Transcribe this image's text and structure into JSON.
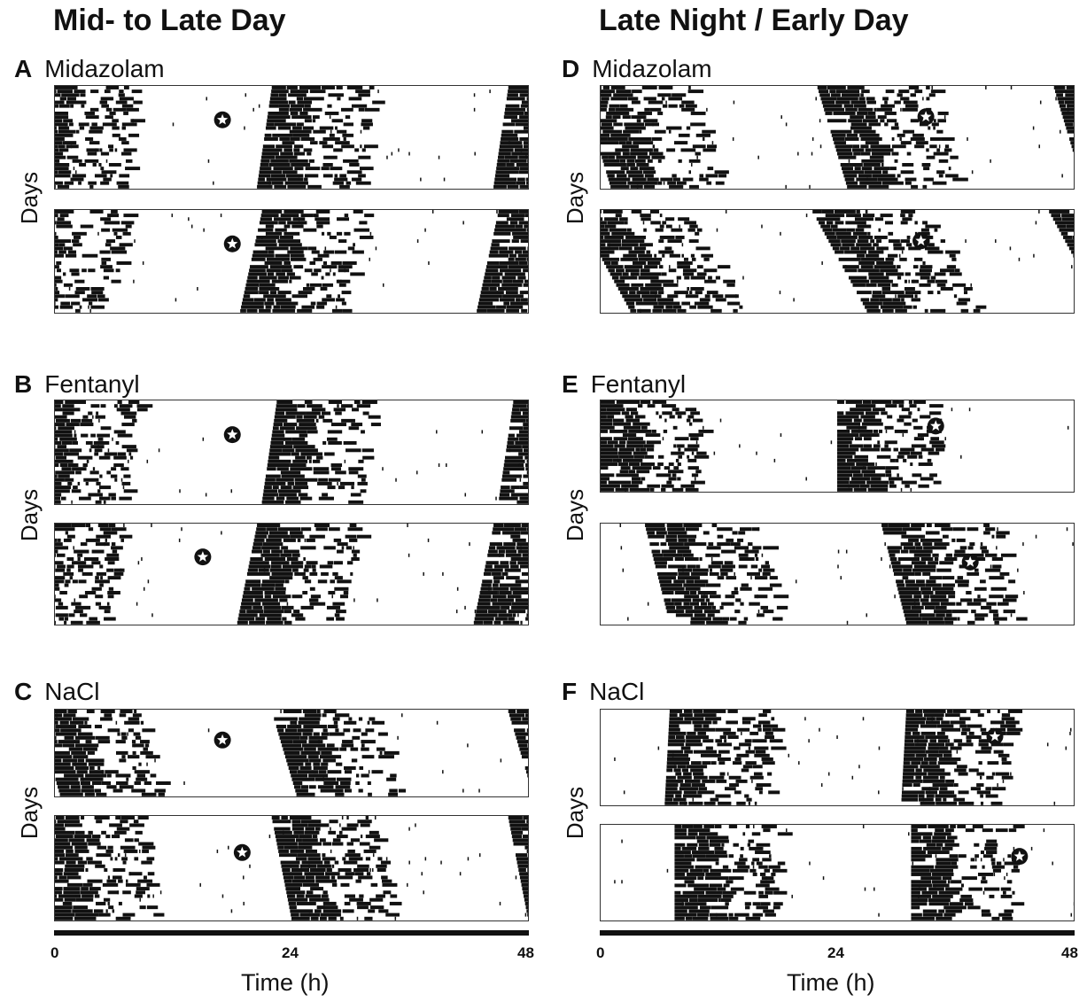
{
  "columns": [
    {
      "title": "Mid- to Late Day",
      "x_ticks": [
        "0",
        "24",
        "48"
      ],
      "x_label": "Time (h)"
    },
    {
      "title": "Late Night / Early Day",
      "x_ticks": [
        "0",
        "24",
        "48"
      ],
      "x_label": "Time (h)"
    }
  ],
  "panels": [
    {
      "letter": "A",
      "drug": "Midazolam",
      "y_label": "Days"
    },
    {
      "letter": "B",
      "drug": "Fentanyl",
      "y_label": "Days"
    },
    {
      "letter": "C",
      "drug": "NaCl",
      "y_label": "Days"
    },
    {
      "letter": "D",
      "drug": "Midazolam",
      "y_label": "Days"
    },
    {
      "letter": "E",
      "drug": "Fentanyl",
      "y_label": "Days"
    },
    {
      "letter": "F",
      "drug": "NaCl",
      "y_label": "Days"
    }
  ],
  "chart_data": {
    "type": "actogram",
    "x_unit": "Time (h)",
    "xlim": [
      0,
      48
    ],
    "x_ticks": [
      0,
      24,
      48
    ],
    "ylabel": "Days",
    "colors": {
      "activity": "#111111",
      "background": "#ffffff"
    },
    "plots": [
      {
        "panel": "A",
        "animal": 1,
        "onsets": [
          22,
          20.5
        ],
        "band_width": 10.5,
        "injection": {
          "time": 17,
          "day_fraction": 0.33
        }
      },
      {
        "panel": "A",
        "animal": 2,
        "onsets": [
          21,
          18.8
        ],
        "band_width": 10.5,
        "injection": {
          "time": 18,
          "day_fraction": 0.33
        }
      },
      {
        "panel": "B",
        "animal": 1,
        "onsets": [
          22.5,
          21
        ],
        "band_width": 10,
        "injection": {
          "time": 18,
          "day_fraction": 0.33
        }
      },
      {
        "panel": "B",
        "animal": 2,
        "onsets": [
          20.5,
          18.5
        ],
        "band_width": 10.5,
        "injection": {
          "time": 15,
          "day_fraction": 0.33
        }
      },
      {
        "panel": "C",
        "animal": 1,
        "onsets": [
          22,
          24.5
        ],
        "band_width": 10.5,
        "injection": {
          "time": 17,
          "day_fraction": 0.35
        }
      },
      {
        "panel": "C",
        "animal": 2,
        "onsets": [
          22,
          24
        ],
        "band_width": 10.5,
        "injection": {
          "time": 19,
          "day_fraction": 0.35
        }
      },
      {
        "panel": "D",
        "animal": 1,
        "onsets": [
          22,
          25
        ],
        "band_width": 11.5,
        "injection": {
          "time": 33,
          "day_fraction": 0.3
        }
      },
      {
        "panel": "D",
        "animal": 2,
        "onsets": [
          21.5,
          27
        ],
        "band_width": 11.5,
        "injection": {
          "time": 32.5,
          "day_fraction": 0.3
        }
      },
      {
        "panel": "E",
        "animal": 1,
        "onsets": [
          24,
          24
        ],
        "band_width": 10,
        "injection": {
          "time": 34,
          "day_fraction": 0.28
        }
      },
      {
        "panel": "E",
        "animal": 2,
        "onsets": [
          4.5,
          7
        ],
        "band_width": 11.5,
        "injection": {
          "time": 37.5,
          "day_fraction": 0.38
        }
      },
      {
        "panel": "F",
        "animal": 1,
        "onsets": [
          7,
          6.5
        ],
        "band_width": 10.5,
        "injection": {
          "time": 40,
          "day_fraction": 0.28
        }
      },
      {
        "panel": "F",
        "animal": 2,
        "onsets": [
          7.5,
          7.5
        ],
        "band_width": 10.5,
        "injection": {
          "time": 42.5,
          "day_fraction": 0.33
        }
      }
    ]
  }
}
